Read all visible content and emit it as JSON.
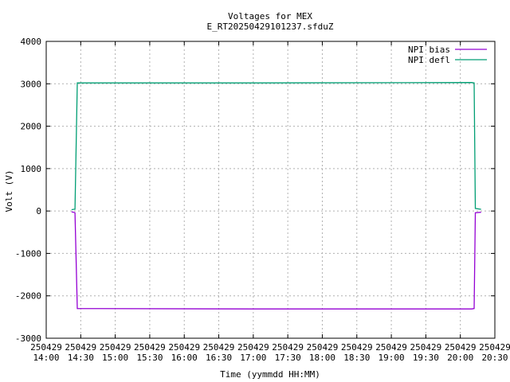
{
  "chart_data": {
    "type": "line",
    "title": "Voltages for MEX",
    "subtitle": "E_RT20250429101237.sfduZ",
    "xlabel": "Time (yymmdd HH:MM)",
    "ylabel": "Volt (V)",
    "xlim": [
      "250429 14:00",
      "250429 20:30"
    ],
    "ylim": [
      -3000,
      4000
    ],
    "x_ticks": [
      {
        "date": "250429",
        "time": "14:00"
      },
      {
        "date": "250429",
        "time": "14:30"
      },
      {
        "date": "250429",
        "time": "15:00"
      },
      {
        "date": "250429",
        "time": "15:30"
      },
      {
        "date": "250429",
        "time": "16:00"
      },
      {
        "date": "250429",
        "time": "16:30"
      },
      {
        "date": "250429",
        "time": "17:00"
      },
      {
        "date": "250429",
        "time": "17:30"
      },
      {
        "date": "250429",
        "time": "18:00"
      },
      {
        "date": "250429",
        "time": "18:30"
      },
      {
        "date": "250429",
        "time": "19:00"
      },
      {
        "date": "250429",
        "time": "19:30"
      },
      {
        "date": "250429",
        "time": "20:00"
      },
      {
        "date": "250429",
        "time": "20:30"
      }
    ],
    "y_ticks": [
      "4000",
      "3000",
      "2000",
      "1000",
      "0",
      "-1000",
      "-2000",
      "-3000"
    ],
    "y_tick_values": [
      4000,
      3000,
      2000,
      1000,
      0,
      -1000,
      -2000,
      -3000
    ],
    "grid": true,
    "legend_position": "top-right",
    "series": [
      {
        "name": "NPI bias",
        "color": "#9400d3",
        "points": [
          {
            "x": "250429 14:22",
            "y": -20
          },
          {
            "x": "250429 14:24",
            "y": -30
          },
          {
            "x": "250429 14:25",
            "y": -40
          },
          {
            "x": "250429 14:27",
            "y": -2300
          },
          {
            "x": "250429 17:00",
            "y": -2310
          },
          {
            "x": "250429 20:10",
            "y": -2310
          },
          {
            "x": "250429 20:12",
            "y": -2300
          },
          {
            "x": "250429 20:13",
            "y": -40
          },
          {
            "x": "250429 20:18",
            "y": -30
          }
        ]
      },
      {
        "name": "NPI defl",
        "color": "#009e73",
        "points": [
          {
            "x": "250429 14:22",
            "y": 30
          },
          {
            "x": "250429 14:24",
            "y": 40
          },
          {
            "x": "250429 14:25",
            "y": 40
          },
          {
            "x": "250429 14:27",
            "y": 3020
          },
          {
            "x": "250429 17:00",
            "y": 3020
          },
          {
            "x": "250429 20:10",
            "y": 3030
          },
          {
            "x": "250429 20:12",
            "y": 3020
          },
          {
            "x": "250429 20:13",
            "y": 60
          },
          {
            "x": "250429 20:18",
            "y": 40
          }
        ]
      }
    ]
  }
}
